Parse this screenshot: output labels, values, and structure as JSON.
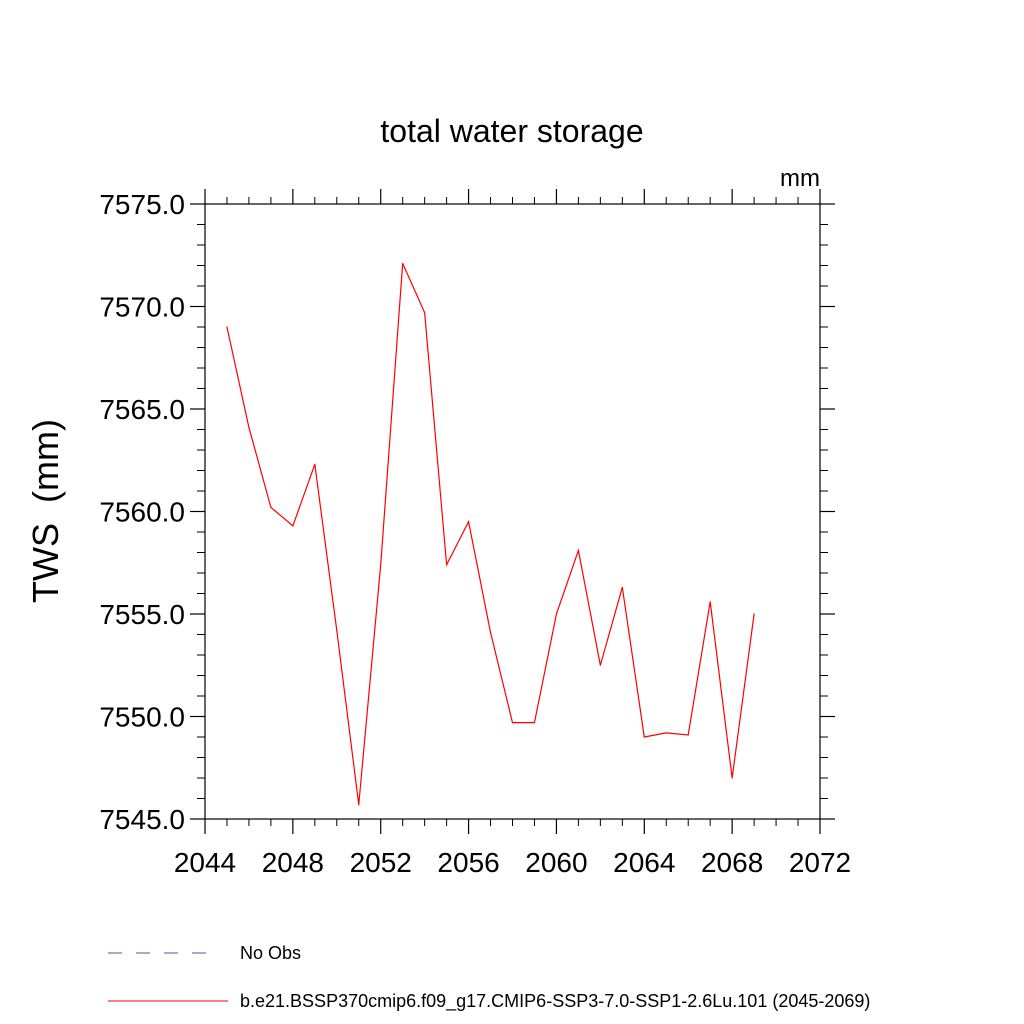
{
  "chart_data": {
    "type": "line",
    "title": "total water storage",
    "units_label": "mm",
    "xlabel": "",
    "ylabel": "TWS  (mm)",
    "xlim": [
      2044,
      2072
    ],
    "ylim": [
      7545.0,
      7575.0
    ],
    "x_ticks": [
      "2044",
      "2048",
      "2052",
      "2056",
      "2060",
      "2064",
      "2068",
      "2072"
    ],
    "y_ticks": [
      "7545.0",
      "7550.0",
      "7555.0",
      "7560.0",
      "7565.0",
      "7570.0",
      "7575.0"
    ],
    "grid": false,
    "legend_position": "bottom",
    "series": [
      {
        "name": "b.e21.BSSP370cmip6.f09_g17.CMIP6-SSP3-7.0-SSP1-2.6Lu.101 (2045-2069)",
        "color": "#ff0000",
        "style": "solid",
        "x": [
          2045,
          2046,
          2047,
          2048,
          2049,
          2050,
          2051,
          2052,
          2053,
          2054,
          2055,
          2056,
          2057,
          2058,
          2059,
          2060,
          2061,
          2062,
          2063,
          2064,
          2065,
          2066,
          2067,
          2068,
          2069
        ],
        "values": [
          7569.0,
          7564.1,
          7560.2,
          7559.3,
          7562.3,
          7554.2,
          7545.7,
          7557.4,
          7572.1,
          7569.7,
          7557.4,
          7559.5,
          7554.1,
          7549.7,
          7549.7,
          7555.0,
          7558.1,
          7552.5,
          7556.3,
          7549.0,
          7549.2,
          7549.1,
          7555.6,
          7547.0,
          7555.0
        ]
      }
    ],
    "legend": [
      {
        "label": "No Obs",
        "color": "#5a4ea0",
        "style": "dashed"
      },
      {
        "label": "b.e21.BSSP370cmip6.f09_g17.CMIP6-SSP3-7.0-SSP1-2.6Lu.101 (2045-2069)",
        "color": "#ff0000",
        "style": "solid"
      }
    ]
  }
}
